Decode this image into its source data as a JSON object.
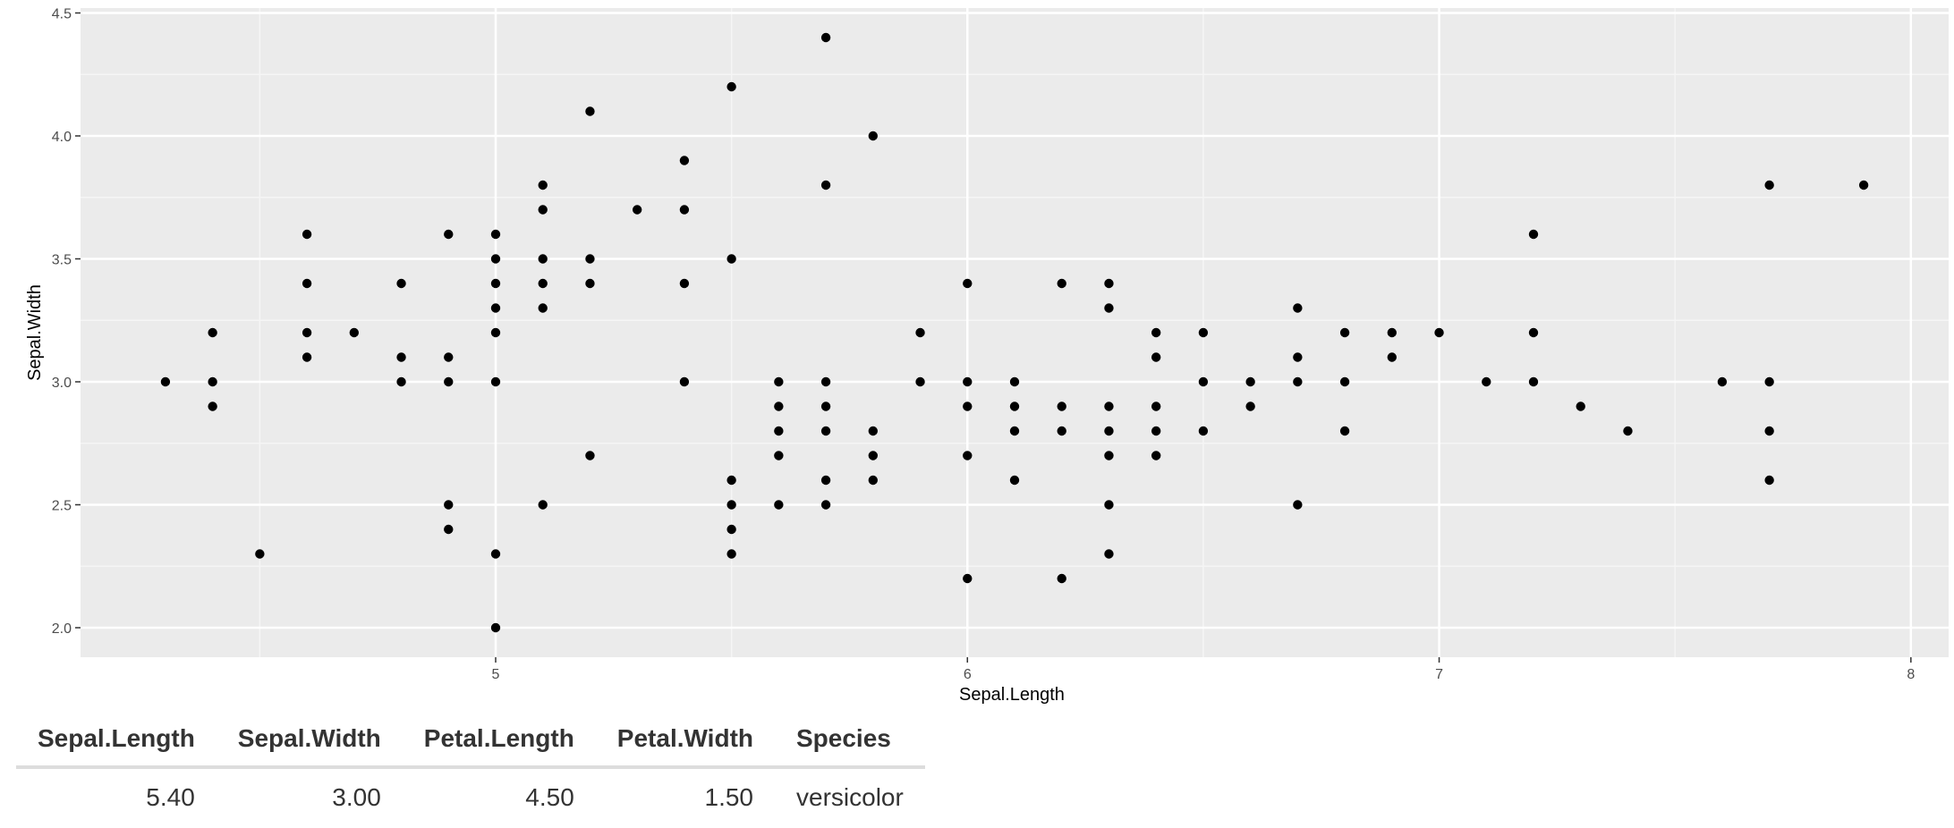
{
  "chart_data": {
    "type": "scatter",
    "title": "",
    "xlabel": "Sepal.Length",
    "ylabel": "Sepal.Width",
    "xlim": [
      4.12,
      8.08
    ],
    "ylim": [
      1.88,
      4.52
    ],
    "x_ticks": [
      5,
      6,
      7,
      8
    ],
    "x_tick_labels": [
      "5",
      "6",
      "7",
      "8"
    ],
    "y_ticks": [
      2.0,
      2.5,
      3.0,
      3.5,
      4.0,
      4.5
    ],
    "y_tick_labels": [
      "2.0",
      "2.5",
      "3.0",
      "3.5",
      "4.0",
      "4.5"
    ],
    "grid": true,
    "background": "#ebebeb",
    "grid_major_color": "#ffffff",
    "point_color": "#000000",
    "points": [
      [
        4.3,
        3.0
      ],
      [
        4.4,
        3.2
      ],
      [
        4.4,
        3.0
      ],
      [
        4.4,
        2.9
      ],
      [
        4.5,
        2.3
      ],
      [
        4.6,
        3.6
      ],
      [
        4.6,
        3.4
      ],
      [
        4.6,
        3.2
      ],
      [
        4.6,
        3.1
      ],
      [
        4.7,
        3.2
      ],
      [
        4.8,
        3.4
      ],
      [
        4.8,
        3.1
      ],
      [
        4.8,
        3.0
      ],
      [
        4.9,
        3.6
      ],
      [
        4.9,
        3.1
      ],
      [
        4.9,
        3.0
      ],
      [
        4.9,
        2.5
      ],
      [
        4.9,
        2.4
      ],
      [
        5.0,
        3.6
      ],
      [
        5.0,
        3.5
      ],
      [
        5.0,
        3.4
      ],
      [
        5.0,
        3.3
      ],
      [
        5.0,
        3.2
      ],
      [
        5.0,
        3.0
      ],
      [
        5.0,
        2.3
      ],
      [
        5.0,
        2.0
      ],
      [
        5.1,
        3.8
      ],
      [
        5.1,
        3.7
      ],
      [
        5.1,
        3.5
      ],
      [
        5.1,
        3.4
      ],
      [
        5.1,
        3.3
      ],
      [
        5.1,
        2.5
      ],
      [
        5.2,
        4.1
      ],
      [
        5.2,
        3.5
      ],
      [
        5.2,
        3.4
      ],
      [
        5.2,
        2.7
      ],
      [
        5.3,
        3.7
      ],
      [
        5.4,
        3.9
      ],
      [
        5.4,
        3.7
      ],
      [
        5.4,
        3.4
      ],
      [
        5.4,
        3.0
      ],
      [
        5.5,
        4.2
      ],
      [
        5.5,
        3.5
      ],
      [
        5.5,
        2.6
      ],
      [
        5.5,
        2.5
      ],
      [
        5.5,
        2.4
      ],
      [
        5.5,
        2.3
      ],
      [
        5.6,
        3.0
      ],
      [
        5.6,
        2.9
      ],
      [
        5.6,
        2.8
      ],
      [
        5.6,
        2.7
      ],
      [
        5.6,
        2.5
      ],
      [
        5.7,
        4.4
      ],
      [
        5.7,
        3.8
      ],
      [
        5.7,
        3.0
      ],
      [
        5.7,
        2.9
      ],
      [
        5.7,
        2.8
      ],
      [
        5.7,
        2.6
      ],
      [
        5.7,
        2.5
      ],
      [
        5.8,
        4.0
      ],
      [
        5.8,
        2.8
      ],
      [
        5.8,
        2.7
      ],
      [
        5.8,
        2.6
      ],
      [
        5.9,
        3.2
      ],
      [
        5.9,
        3.0
      ],
      [
        6.0,
        3.4
      ],
      [
        6.0,
        3.0
      ],
      [
        6.0,
        2.9
      ],
      [
        6.0,
        2.7
      ],
      [
        6.0,
        2.2
      ],
      [
        6.1,
        3.0
      ],
      [
        6.1,
        2.9
      ],
      [
        6.1,
        2.8
      ],
      [
        6.1,
        2.6
      ],
      [
        6.2,
        3.4
      ],
      [
        6.2,
        2.9
      ],
      [
        6.2,
        2.8
      ],
      [
        6.2,
        2.2
      ],
      [
        6.3,
        3.4
      ],
      [
        6.3,
        3.3
      ],
      [
        6.3,
        2.9
      ],
      [
        6.3,
        2.8
      ],
      [
        6.3,
        2.7
      ],
      [
        6.3,
        2.5
      ],
      [
        6.3,
        2.3
      ],
      [
        6.4,
        3.2
      ],
      [
        6.4,
        3.1
      ],
      [
        6.4,
        2.9
      ],
      [
        6.4,
        2.8
      ],
      [
        6.4,
        2.7
      ],
      [
        6.5,
        3.2
      ],
      [
        6.5,
        3.0
      ],
      [
        6.5,
        2.8
      ],
      [
        6.6,
        3.0
      ],
      [
        6.6,
        2.9
      ],
      [
        6.7,
        3.3
      ],
      [
        6.7,
        3.1
      ],
      [
        6.7,
        3.0
      ],
      [
        6.7,
        2.5
      ],
      [
        6.8,
        3.2
      ],
      [
        6.8,
        3.0
      ],
      [
        6.8,
        2.8
      ],
      [
        6.9,
        3.2
      ],
      [
        6.9,
        3.1
      ],
      [
        7.0,
        3.2
      ],
      [
        7.1,
        3.0
      ],
      [
        7.2,
        3.6
      ],
      [
        7.2,
        3.2
      ],
      [
        7.2,
        3.0
      ],
      [
        7.3,
        2.9
      ],
      [
        7.4,
        2.8
      ],
      [
        7.6,
        3.0
      ],
      [
        7.7,
        3.8
      ],
      [
        7.7,
        3.0
      ],
      [
        7.7,
        2.8
      ],
      [
        7.7,
        2.6
      ],
      [
        7.9,
        3.8
      ]
    ]
  },
  "table": {
    "headers": [
      "Sepal.Length",
      "Sepal.Width",
      "Petal.Length",
      "Petal.Width",
      "Species"
    ],
    "row": [
      "5.40",
      "3.00",
      "4.50",
      "1.50",
      "versicolor"
    ]
  }
}
